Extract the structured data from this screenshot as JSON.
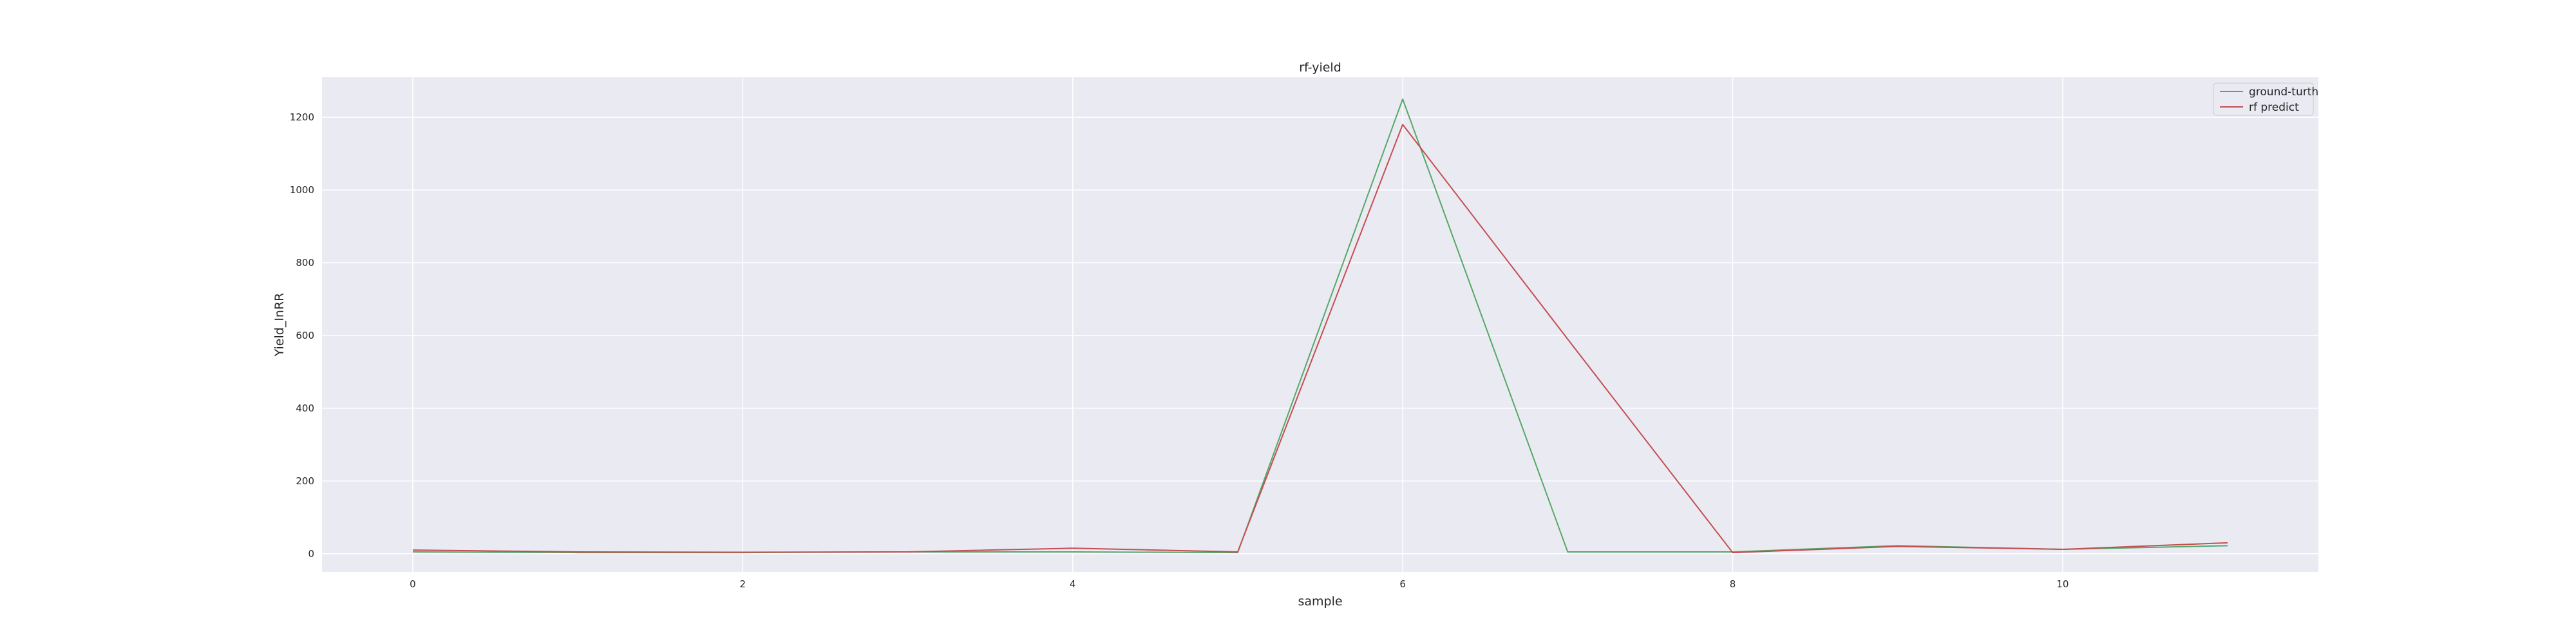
{
  "chart_data": {
    "type": "line",
    "title": "rf-yield",
    "xlabel": "sample",
    "ylabel": "Yield_InRR",
    "x": [
      0,
      1,
      2,
      3,
      4,
      5,
      6,
      7,
      8,
      9,
      10,
      11
    ],
    "xlim": [
      -0.55,
      11.55
    ],
    "ylim": [
      -50,
      1310
    ],
    "xticks": [
      0,
      2,
      4,
      6,
      8,
      10
    ],
    "yticks": [
      0,
      200,
      400,
      600,
      800,
      1000,
      1200
    ],
    "grid": true,
    "legend_position": "top-right",
    "series": [
      {
        "name": "ground-turth",
        "color": "#55a868",
        "values": [
          5,
          3,
          3,
          5,
          5,
          3,
          1250,
          5,
          5,
          22,
          12,
          22
        ]
      },
      {
        "name": "rf predict",
        "color": "#c44e52",
        "values": [
          10,
          5,
          4,
          5,
          15,
          5,
          1180,
          590,
          3,
          20,
          12,
          30
        ]
      }
    ]
  }
}
